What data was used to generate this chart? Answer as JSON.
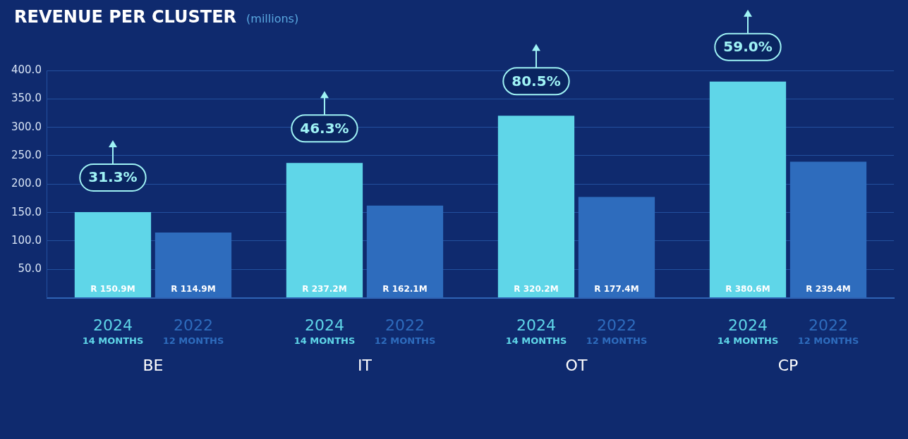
{
  "chart_data": {
    "type": "bar",
    "title": "REVENUE PER CLUSTER",
    "subtitle": "(millions)",
    "categories": [
      "BE",
      "IT",
      "OT",
      "CP"
    ],
    "series": [
      {
        "name": "2024 14 MONTHS",
        "color": "#5fd6e8",
        "values": [
          150.9,
          237.2,
          320.2,
          380.6
        ],
        "value_labels": [
          "R 150.9M",
          "R 237.2M",
          "R 320.2M",
          "R 380.6M"
        ]
      },
      {
        "name": "2022 12 MONTHS",
        "color": "#2e6cbd",
        "values": [
          114.9,
          162.1,
          177.4,
          239.4
        ],
        "value_labels": [
          "R 114.9M",
          "R 162.1M",
          "R 177.4M",
          "R 239.4M"
        ]
      }
    ],
    "annotations": [
      {
        "text": "31.3%",
        "x": "BE",
        "y": 150.9
      },
      {
        "text": "46.3%",
        "x": "IT",
        "y": 237.2
      },
      {
        "text": "80.5%",
        "x": "OT",
        "y": 320.2
      },
      {
        "text": "59.0%",
        "x": "CP",
        "y": 380.6
      }
    ],
    "ylim": [
      0,
      400
    ],
    "yticks": [
      {
        "value": 0,
        "label": null
      },
      {
        "value": 50,
        "label": "50.0"
      },
      {
        "value": 100,
        "label": "100.0"
      },
      {
        "value": 150,
        "label": "150.0"
      },
      {
        "value": 200,
        "label": "200.0"
      },
      {
        "value": 250,
        "label": "250.0"
      },
      {
        "value": 300,
        "label": "300.0"
      },
      {
        "value": 350,
        "label": "350.0"
      },
      {
        "value": 400,
        "label": "400.0"
      }
    ],
    "grid": "y",
    "legend": false
  }
}
